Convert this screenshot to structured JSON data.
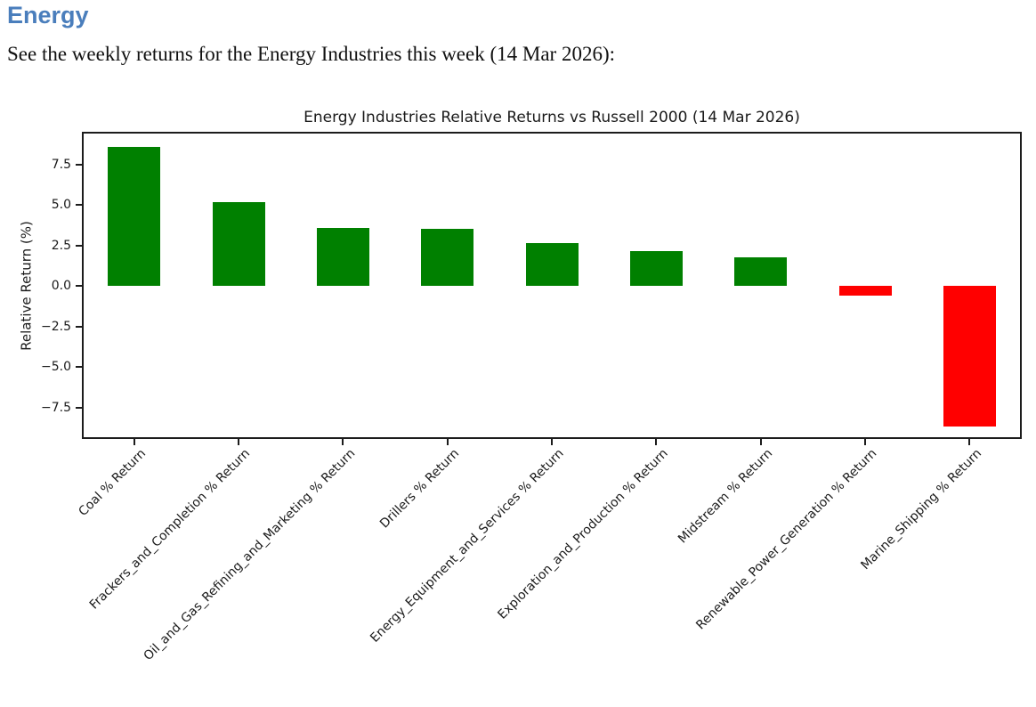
{
  "page": {
    "heading": "Energy",
    "heading_color": "#4a7ebc",
    "intro": "See the weekly returns for the Energy Industries this week (14 Mar 2026):"
  },
  "chart_data": {
    "type": "bar",
    "title": "Energy Industries Relative Returns vs Russell 2000 (14 Mar 2026)",
    "xlabel": "",
    "ylabel": "Relative Return (%)",
    "categories": [
      "Coal % Return",
      "Frackers_and_Completion % Return",
      "Oil_and_Gas_Refining_and_Marketing % Return",
      "Drillers % Return",
      "Energy_Equipment_and_Services % Return",
      "Exploration_and_Production % Return",
      "Midstream % Return",
      "Renewable_Power_Generation % Return",
      "Marine_Shipping % Return"
    ],
    "values": [
      8.6,
      5.15,
      3.55,
      3.5,
      2.65,
      2.15,
      1.75,
      -0.6,
      -8.7
    ],
    "positive_color": "#008000",
    "negative_color": "#ff0000",
    "yticks": [
      7.5,
      5.0,
      2.5,
      0.0,
      -2.5,
      -5.0,
      -7.5
    ],
    "ylim": [
      -9.5,
      9.5
    ],
    "grid": false,
    "legend": null,
    "x_tick_rotation": 45
  }
}
